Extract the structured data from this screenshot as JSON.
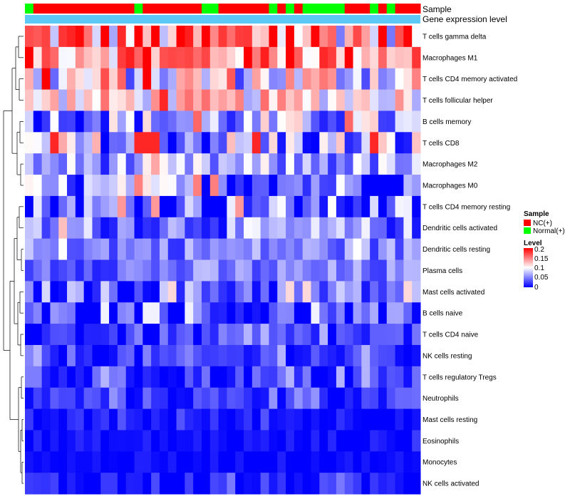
{
  "chart_data": {
    "type": "heatmap",
    "annotations": {
      "sample_label": "Sample",
      "gene_label": "Gene expression level",
      "sample_groups": [
        "N",
        "P",
        "P",
        "P",
        "P",
        "P",
        "P",
        "P",
        "P",
        "P",
        "P",
        "P",
        "P",
        "N",
        "P",
        "P",
        "P",
        "P",
        "P",
        "P",
        "P",
        "N",
        "N",
        "P",
        "P",
        "P",
        "P",
        "P",
        "P",
        "N",
        "P",
        "N",
        "P",
        "N",
        "N",
        "N",
        "N",
        "N",
        "P",
        "P",
        "P",
        "N",
        "P",
        "N",
        "P",
        "P",
        "P"
      ],
      "gene_colors_hex": "#5BC8F5"
    },
    "rows": [
      "T cells gamma delta",
      "Macrophages M1",
      "T cells CD4 memory activated",
      "T cells follicular helper",
      "B cells memory",
      "T cells CD8",
      "Macrophages M2",
      "Macrophages M0",
      "T cells CD4 memory resting",
      "Dendritic cells activated",
      "Dendritic cells resting",
      "Plasma cells",
      "Mast cells activated",
      "B cells naive",
      "T cells CD4 naive",
      "NK cells resting",
      "T cells regulatory  Tregs",
      "Neutrophils",
      "Mast cells resting",
      "Eosinophils",
      "Monocytes",
      "NK cells activated"
    ],
    "row_base": [
      0.14,
      0.15,
      0.1,
      0.11,
      0.06,
      0.06,
      0.06,
      0.05,
      0.04,
      0.05,
      0.05,
      0.045,
      0.04,
      0.02,
      0.02,
      0.02,
      0.02,
      0.02,
      0.008,
      0.004,
      0.003,
      0.01
    ],
    "row_spread": [
      0.06,
      0.04,
      0.05,
      0.03,
      0.04,
      0.05,
      0.03,
      0.04,
      0.04,
      0.03,
      0.02,
      0.02,
      0.03,
      0.03,
      0.02,
      0.02,
      0.02,
      0.015,
      0.01,
      0.008,
      0.006,
      0.015
    ],
    "num_columns": 47,
    "legend": {
      "sample_title": "Sample",
      "sample_items": [
        {
          "label": "NC(+)",
          "color": "#FF0000"
        },
        {
          "label": "Normal(+)",
          "color": "#00FF00"
        }
      ],
      "level_title": "Level",
      "level_ticks": [
        "0.2",
        "0.15",
        "0.1",
        "0.05",
        "0"
      ],
      "level_range": [
        0,
        0.2
      ]
    },
    "colors": {
      "low": "#0000FF",
      "mid": "#FFFFFF",
      "high": "#FF0000",
      "nc": "#FF0000",
      "normal": "#00FF00"
    }
  }
}
